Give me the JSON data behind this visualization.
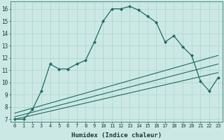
{
  "xlabel": "Humidex (Indice chaleur)",
  "background_color": "#cce8e5",
  "grid_color": "#aad4d0",
  "line_color": "#1e6b63",
  "xlim": [
    -0.5,
    23.5
  ],
  "ylim": [
    6.8,
    16.6
  ],
  "yticks": [
    7,
    8,
    9,
    10,
    11,
    12,
    13,
    14,
    15,
    16
  ],
  "xticks": [
    0,
    1,
    2,
    3,
    4,
    5,
    6,
    7,
    8,
    9,
    10,
    11,
    12,
    13,
    14,
    15,
    16,
    17,
    18,
    19,
    20,
    21,
    22,
    23
  ],
  "main_series": {
    "x": [
      0,
      1,
      2,
      3,
      4,
      5,
      6,
      7,
      8,
      9,
      10,
      11,
      12,
      13,
      14,
      15,
      16,
      17,
      18,
      19,
      20,
      21,
      22,
      23
    ],
    "y": [
      7.0,
      7.0,
      7.8,
      9.3,
      11.5,
      11.1,
      11.1,
      11.5,
      11.8,
      13.3,
      15.0,
      16.0,
      16.0,
      16.2,
      15.9,
      15.4,
      14.9,
      13.3,
      13.8,
      12.9,
      12.2,
      10.1,
      9.3,
      10.4
    ],
    "marker": "D",
    "markersize": 2.0,
    "linewidth": 0.9,
    "color": "#1e6b63"
  },
  "linear_series": [
    {
      "x": [
        0,
        23
      ],
      "y": [
        7.5,
        12.2
      ],
      "linewidth": 0.8,
      "color": "#1e6b63"
    },
    {
      "x": [
        0,
        23
      ],
      "y": [
        7.2,
        11.5
      ],
      "linewidth": 0.8,
      "color": "#1e6b63"
    },
    {
      "x": [
        0,
        23
      ],
      "y": [
        7.0,
        10.8
      ],
      "linewidth": 0.8,
      "color": "#1e6b63"
    }
  ]
}
